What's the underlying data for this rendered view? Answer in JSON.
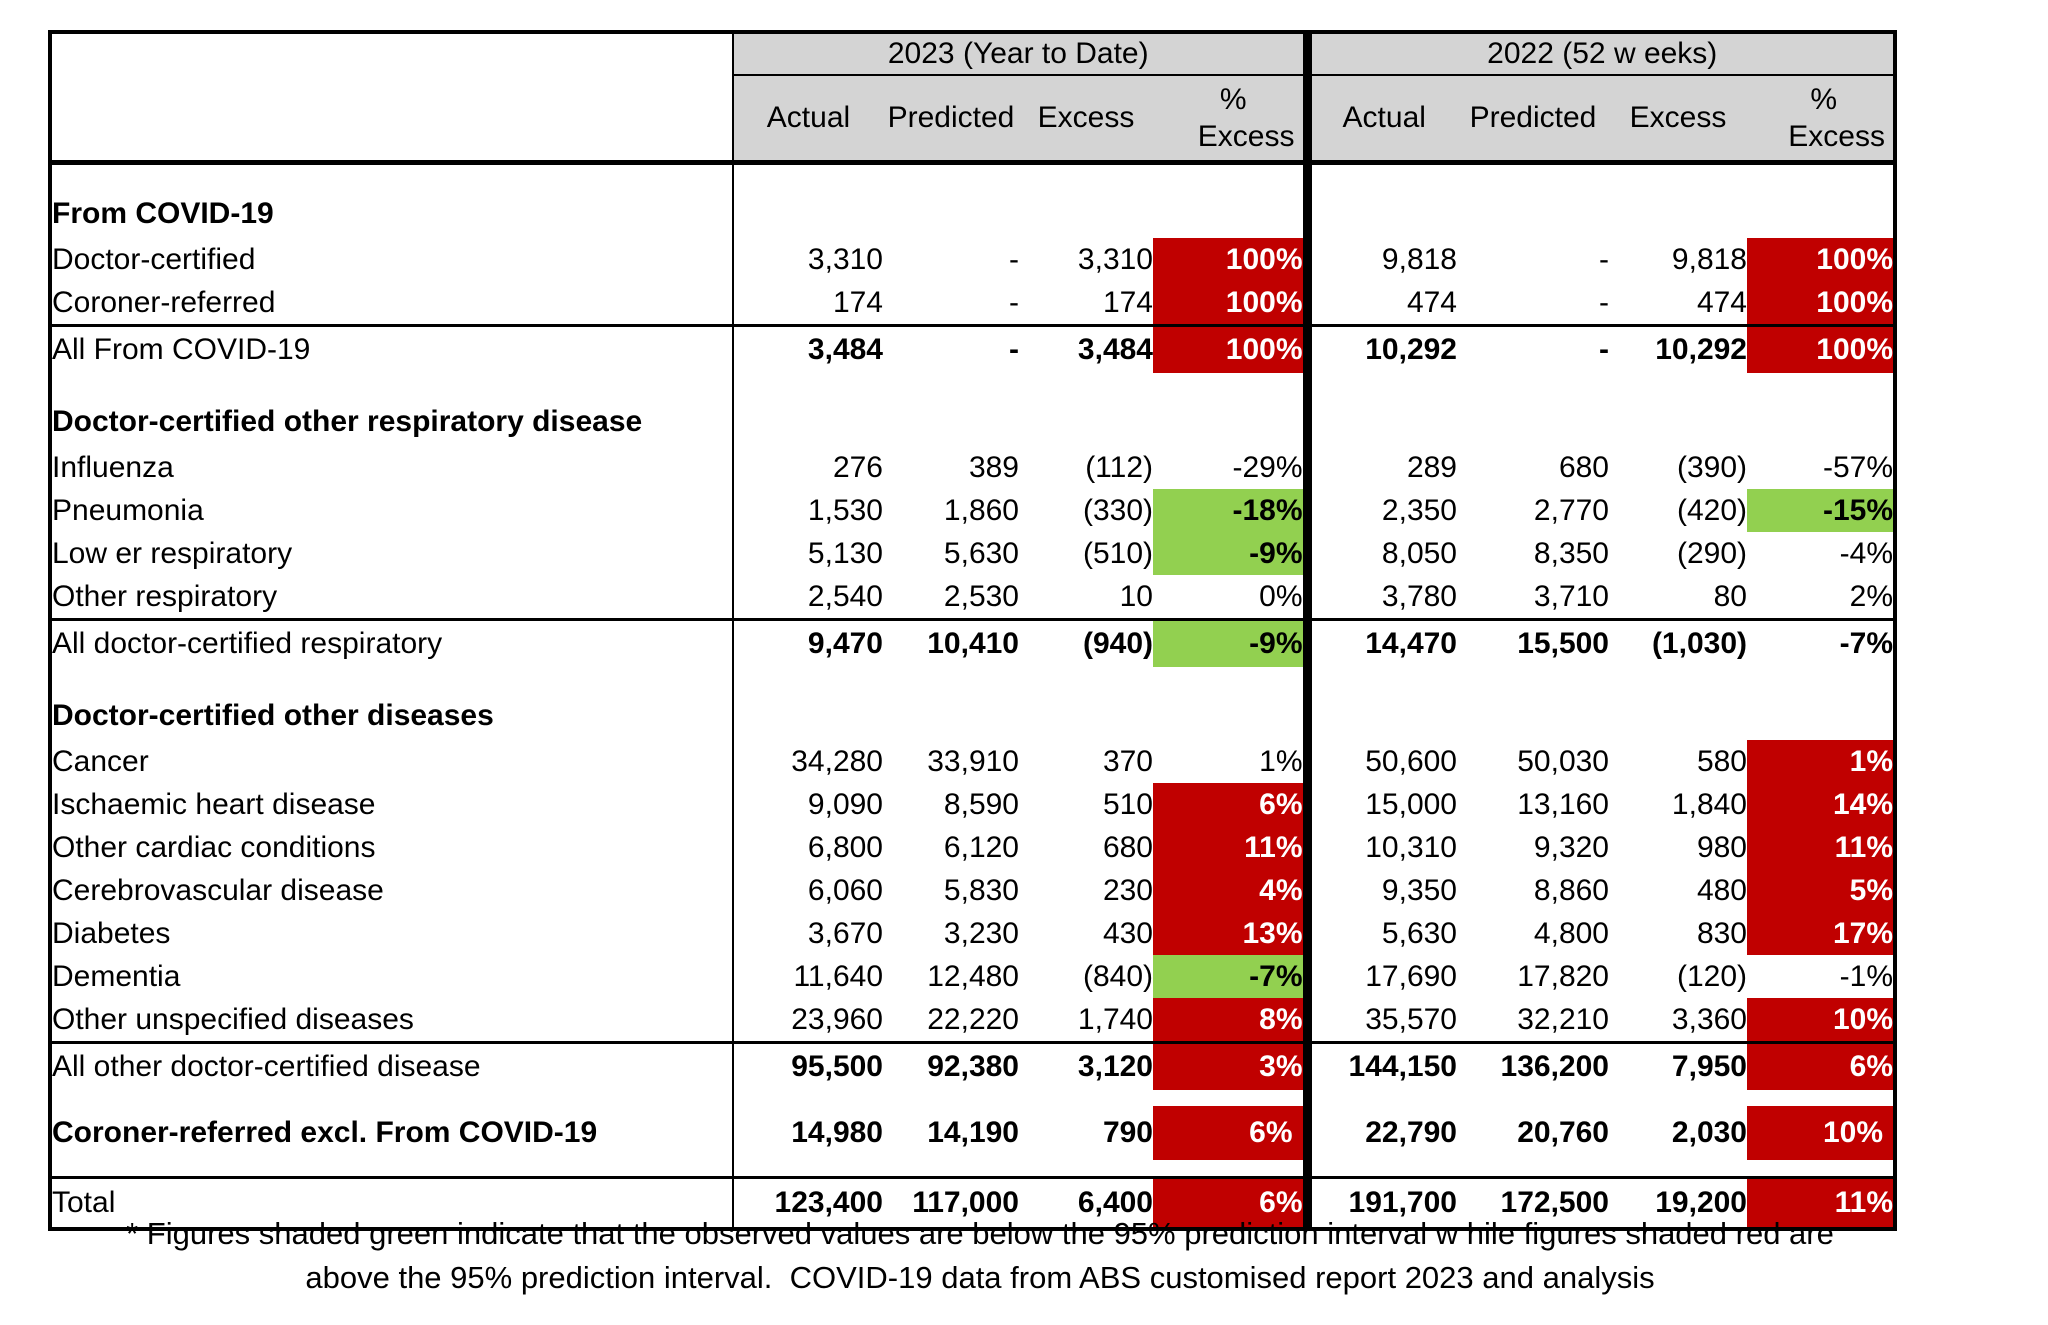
{
  "colors": {
    "shade_red": "#C00000",
    "shade_green": "#92D050",
    "header_gray": "#D4D4D4",
    "border": "#000000"
  },
  "chart_data": {
    "type": "table",
    "column_groups": [
      {
        "label": "2023 (Year to Date)"
      },
      {
        "label": "2022 (52 w eeks)"
      }
    ],
    "columns": [
      "Actual",
      "Predicted",
      "Excess",
      "% Excess"
    ],
    "pct_header": {
      "line1": "%",
      "line2": "Excess"
    },
    "rows": [
      {
        "type": "gap"
      },
      {
        "type": "section",
        "label": "From COVID-19"
      },
      {
        "type": "data",
        "label": "Doctor-certified",
        "y2023": {
          "actual": "3,310",
          "predicted": "-",
          "excess": "3,310",
          "pct_excess": "100%",
          "pct_shade": "red"
        },
        "y2022": {
          "actual": "9,818",
          "predicted": "-",
          "excess": "9,818",
          "pct_excess": "100%",
          "pct_shade": "red"
        }
      },
      {
        "type": "data",
        "label": "Coroner-referred",
        "y2023": {
          "actual": "174",
          "predicted": "-",
          "excess": "174",
          "pct_excess": "100%",
          "pct_shade": "red"
        },
        "y2022": {
          "actual": "474",
          "predicted": "-",
          "excess": "474",
          "pct_excess": "100%",
          "pct_shade": "red"
        }
      },
      {
        "type": "subtotal",
        "label": "All From COVID-19",
        "y2023": {
          "actual": "3,484",
          "predicted": "-",
          "excess": "3,484",
          "pct_excess": "100%",
          "pct_shade": "red"
        },
        "y2022": {
          "actual": "10,292",
          "predicted": "-",
          "excess": "10,292",
          "pct_excess": "100%",
          "pct_shade": "red"
        }
      },
      {
        "type": "gap"
      },
      {
        "type": "section",
        "label": "Doctor-certified other respiratory disease"
      },
      {
        "type": "data",
        "label": "Influenza",
        "y2023": {
          "actual": "276",
          "predicted": "389",
          "excess": "(112)",
          "pct_excess": "-29%",
          "pct_shade": null
        },
        "y2022": {
          "actual": "289",
          "predicted": "680",
          "excess": "(390)",
          "pct_excess": "-57%",
          "pct_shade": null
        }
      },
      {
        "type": "data",
        "label": "Pneumonia",
        "y2023": {
          "actual": "1,530",
          "predicted": "1,860",
          "excess": "(330)",
          "pct_excess": "-18%",
          "pct_shade": "green"
        },
        "y2022": {
          "actual": "2,350",
          "predicted": "2,770",
          "excess": "(420)",
          "pct_excess": "-15%",
          "pct_shade": "green"
        }
      },
      {
        "type": "data",
        "label": "Low er respiratory",
        "y2023": {
          "actual": "5,130",
          "predicted": "5,630",
          "excess": "(510)",
          "pct_excess": "-9%",
          "pct_shade": "green"
        },
        "y2022": {
          "actual": "8,050",
          "predicted": "8,350",
          "excess": "(290)",
          "pct_excess": "-4%",
          "pct_shade": null
        }
      },
      {
        "type": "data",
        "label": "Other respiratory",
        "y2023": {
          "actual": "2,540",
          "predicted": "2,530",
          "excess": "10",
          "pct_excess": "0%",
          "pct_shade": null
        },
        "y2022": {
          "actual": "3,780",
          "predicted": "3,710",
          "excess": "80",
          "pct_excess": "2%",
          "pct_shade": null
        }
      },
      {
        "type": "subtotal",
        "label": "All doctor-certified respiratory",
        "y2023": {
          "actual": "9,470",
          "predicted": "10,410",
          "excess": "(940)",
          "pct_excess": "-9%",
          "pct_shade": "green"
        },
        "y2022": {
          "actual": "14,470",
          "predicted": "15,500",
          "excess": "(1,030)",
          "pct_excess": "-7%",
          "pct_shade": null
        }
      },
      {
        "type": "gap"
      },
      {
        "type": "section",
        "label": "Doctor-certified other diseases"
      },
      {
        "type": "data",
        "label": "Cancer",
        "y2023": {
          "actual": "34,280",
          "predicted": "33,910",
          "excess": "370",
          "pct_excess": "1%",
          "pct_shade": null
        },
        "y2022": {
          "actual": "50,600",
          "predicted": "50,030",
          "excess": "580",
          "pct_excess": "1%",
          "pct_shade": "red"
        }
      },
      {
        "type": "data",
        "label": "Ischaemic heart disease",
        "y2023": {
          "actual": "9,090",
          "predicted": "8,590",
          "excess": "510",
          "pct_excess": "6%",
          "pct_shade": "red"
        },
        "y2022": {
          "actual": "15,000",
          "predicted": "13,160",
          "excess": "1,840",
          "pct_excess": "14%",
          "pct_shade": "red"
        }
      },
      {
        "type": "data",
        "label": "Other cardiac conditions",
        "y2023": {
          "actual": "6,800",
          "predicted": "6,120",
          "excess": "680",
          "pct_excess": "11%",
          "pct_shade": "red"
        },
        "y2022": {
          "actual": "10,310",
          "predicted": "9,320",
          "excess": "980",
          "pct_excess": "11%",
          "pct_shade": "red"
        }
      },
      {
        "type": "data",
        "label": "Cerebrovascular disease",
        "y2023": {
          "actual": "6,060",
          "predicted": "5,830",
          "excess": "230",
          "pct_excess": "4%",
          "pct_shade": "red"
        },
        "y2022": {
          "actual": "9,350",
          "predicted": "8,860",
          "excess": "480",
          "pct_excess": "5%",
          "pct_shade": "red"
        }
      },
      {
        "type": "data",
        "label": "Diabetes",
        "y2023": {
          "actual": "3,670",
          "predicted": "3,230",
          "excess": "430",
          "pct_excess": "13%",
          "pct_shade": "red"
        },
        "y2022": {
          "actual": "5,630",
          "predicted": "4,800",
          "excess": "830",
          "pct_excess": "17%",
          "pct_shade": "red"
        }
      },
      {
        "type": "data",
        "label": "Dementia",
        "y2023": {
          "actual": "11,640",
          "predicted": "12,480",
          "excess": "(840)",
          "pct_excess": "-7%",
          "pct_shade": "green"
        },
        "y2022": {
          "actual": "17,690",
          "predicted": "17,820",
          "excess": "(120)",
          "pct_excess": "-1%",
          "pct_shade": null
        }
      },
      {
        "type": "data",
        "label": "Other unspecified diseases",
        "y2023": {
          "actual": "23,960",
          "predicted": "22,220",
          "excess": "1,740",
          "pct_excess": "8%",
          "pct_shade": "red"
        },
        "y2022": {
          "actual": "35,570",
          "predicted": "32,210",
          "excess": "3,360",
          "pct_excess": "10%",
          "pct_shade": "red"
        }
      },
      {
        "type": "subtotal",
        "label": "All other doctor-certified disease",
        "y2023": {
          "actual": "95,500",
          "predicted": "92,380",
          "excess": "3,120",
          "pct_excess": "3%",
          "pct_shade": "red"
        },
        "y2022": {
          "actual": "144,150",
          "predicted": "136,200",
          "excess": "7,950",
          "pct_excess": "6%",
          "pct_shade": "red"
        }
      },
      {
        "type": "coroner",
        "label": "Coroner-referred excl. From COVID-19",
        "y2023": {
          "actual": "14,980",
          "predicted": "14,190",
          "excess": "790",
          "pct_excess": "6%",
          "pct_shade": "red"
        },
        "y2022": {
          "actual": "22,790",
          "predicted": "20,760",
          "excess": "2,030",
          "pct_excess": "10%",
          "pct_shade": "red"
        }
      },
      {
        "type": "grand",
        "label": "Total",
        "y2023": {
          "actual": "123,400",
          "predicted": "117,000",
          "excess": "6,400",
          "pct_excess": "6%",
          "pct_shade": "red"
        },
        "y2022": {
          "actual": "191,700",
          "predicted": "172,500",
          "excess": "19,200",
          "pct_excess": "11%",
          "pct_shade": "red"
        }
      }
    ]
  },
  "footnote": {
    "line1": "* Figures shaded green indicate that the observed values are below the 95% prediction interval w hile figures shaded red are",
    "line2": "above the 95% prediction interval.  COVID-19 data from ABS customised report 2023 and analysis"
  }
}
